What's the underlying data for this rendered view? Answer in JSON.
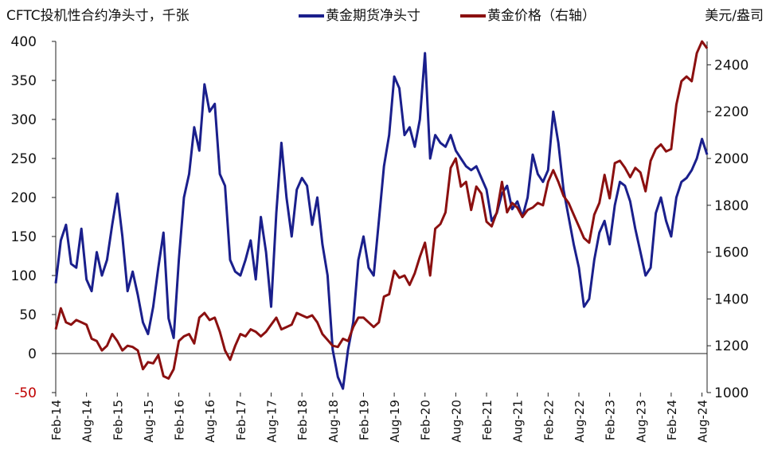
{
  "header": {
    "left_title": "CFTC投机性合约净头寸，千张",
    "right_unit": "美元/盎司"
  },
  "legend": {
    "net_long_label": "黄金期货净头寸",
    "price_label": "黄金价格（右轴）"
  },
  "colors": {
    "net_long": "#1a1f8c",
    "price": "#8b1010",
    "negative_tick": "#c00000",
    "axis": "#222222"
  },
  "chart_data": {
    "type": "line",
    "x_ticks": [
      "Feb-14",
      "Aug-14",
      "Feb-15",
      "Aug-15",
      "Feb-16",
      "Aug-16",
      "Feb-17",
      "Aug-17",
      "Feb-18",
      "Aug-18",
      "Feb-19",
      "Aug-19",
      "Feb-20",
      "Aug-20",
      "Feb-21",
      "Aug-21",
      "Feb-22",
      "Aug-22",
      "Feb-23",
      "Aug-23",
      "Feb-24",
      "Aug-24"
    ],
    "x_range": [
      "2014-02",
      "2024-09"
    ],
    "y_left": {
      "label": "CFTC投机性合约净头寸，千张",
      "min": -50,
      "max": 400,
      "ticks": [
        -50,
        0,
        50,
        100,
        150,
        200,
        250,
        300,
        350,
        400
      ]
    },
    "y_right": {
      "label": "美元/盎司",
      "min": 1000,
      "max": 2500,
      "ticks": [
        1000,
        1200,
        1400,
        1600,
        1800,
        2000,
        2200,
        2400
      ]
    },
    "gridlines": false,
    "legend_position": "top",
    "series": [
      {
        "name": "黄金期货净头寸",
        "axis": "left",
        "points": [
          [
            "2014-02",
            90
          ],
          [
            "2014-03",
            145
          ],
          [
            "2014-04",
            165
          ],
          [
            "2014-05",
            115
          ],
          [
            "2014-06",
            110
          ],
          [
            "2014-07",
            160
          ],
          [
            "2014-08",
            95
          ],
          [
            "2014-09",
            80
          ],
          [
            "2014-10",
            130
          ],
          [
            "2014-11",
            100
          ],
          [
            "2014-12",
            120
          ],
          [
            "2015-01",
            165
          ],
          [
            "2015-02",
            205
          ],
          [
            "2015-03",
            150
          ],
          [
            "2015-04",
            80
          ],
          [
            "2015-05",
            105
          ],
          [
            "2015-06",
            75
          ],
          [
            "2015-07",
            40
          ],
          [
            "2015-08",
            25
          ],
          [
            "2015-09",
            60
          ],
          [
            "2015-10",
            110
          ],
          [
            "2015-11",
            155
          ],
          [
            "2015-12",
            45
          ],
          [
            "2016-01",
            20
          ],
          [
            "2016-02",
            120
          ],
          [
            "2016-03",
            200
          ],
          [
            "2016-04",
            230
          ],
          [
            "2016-05",
            290
          ],
          [
            "2016-06",
            260
          ],
          [
            "2016-07",
            345
          ],
          [
            "2016-08",
            310
          ],
          [
            "2016-09",
            320
          ],
          [
            "2016-10",
            230
          ],
          [
            "2016-11",
            215
          ],
          [
            "2016-12",
            120
          ],
          [
            "2017-01",
            105
          ],
          [
            "2017-02",
            100
          ],
          [
            "2017-03",
            120
          ],
          [
            "2017-04",
            145
          ],
          [
            "2017-05",
            95
          ],
          [
            "2017-06",
            175
          ],
          [
            "2017-07",
            130
          ],
          [
            "2017-08",
            60
          ],
          [
            "2017-09",
            180
          ],
          [
            "2017-10",
            270
          ],
          [
            "2017-11",
            200
          ],
          [
            "2017-12",
            150
          ],
          [
            "2018-01",
            210
          ],
          [
            "2018-02",
            225
          ],
          [
            "2018-03",
            215
          ],
          [
            "2018-04",
            165
          ],
          [
            "2018-05",
            200
          ],
          [
            "2018-06",
            140
          ],
          [
            "2018-07",
            100
          ],
          [
            "2018-08",
            5
          ],
          [
            "2018-09",
            -30
          ],
          [
            "2018-10",
            -45
          ],
          [
            "2018-11",
            5
          ],
          [
            "2018-12",
            40
          ],
          [
            "2019-01",
            120
          ],
          [
            "2019-02",
            150
          ],
          [
            "2019-03",
            110
          ],
          [
            "2019-04",
            100
          ],
          [
            "2019-05",
            170
          ],
          [
            "2019-06",
            240
          ],
          [
            "2019-07",
            280
          ],
          [
            "2019-08",
            355
          ],
          [
            "2019-09",
            340
          ],
          [
            "2019-10",
            280
          ],
          [
            "2019-11",
            290
          ],
          [
            "2019-12",
            265
          ],
          [
            "2020-01",
            300
          ],
          [
            "2020-02",
            385
          ],
          [
            "2020-03",
            250
          ],
          [
            "2020-04",
            280
          ],
          [
            "2020-05",
            270
          ],
          [
            "2020-06",
            265
          ],
          [
            "2020-07",
            280
          ],
          [
            "2020-08",
            260
          ],
          [
            "2020-09",
            250
          ],
          [
            "2020-10",
            240
          ],
          [
            "2020-11",
            235
          ],
          [
            "2020-12",
            240
          ],
          [
            "2021-01",
            225
          ],
          [
            "2021-02",
            210
          ],
          [
            "2021-03",
            170
          ],
          [
            "2021-04",
            180
          ],
          [
            "2021-05",
            205
          ],
          [
            "2021-06",
            215
          ],
          [
            "2021-07",
            185
          ],
          [
            "2021-08",
            195
          ],
          [
            "2021-09",
            175
          ],
          [
            "2021-10",
            200
          ],
          [
            "2021-11",
            255
          ],
          [
            "2021-12",
            230
          ],
          [
            "2022-01",
            220
          ],
          [
            "2022-02",
            235
          ],
          [
            "2022-03",
            310
          ],
          [
            "2022-04",
            270
          ],
          [
            "2022-05",
            210
          ],
          [
            "2022-06",
            175
          ],
          [
            "2022-07",
            140
          ],
          [
            "2022-08",
            110
          ],
          [
            "2022-09",
            60
          ],
          [
            "2022-10",
            70
          ],
          [
            "2022-11",
            120
          ],
          [
            "2022-12",
            155
          ],
          [
            "2023-01",
            170
          ],
          [
            "2023-02",
            140
          ],
          [
            "2023-03",
            190
          ],
          [
            "2023-04",
            220
          ],
          [
            "2023-05",
            215
          ],
          [
            "2023-06",
            195
          ],
          [
            "2023-07",
            160
          ],
          [
            "2023-08",
            130
          ],
          [
            "2023-09",
            100
          ],
          [
            "2023-10",
            110
          ],
          [
            "2023-11",
            180
          ],
          [
            "2023-12",
            200
          ],
          [
            "2024-01",
            170
          ],
          [
            "2024-02",
            150
          ],
          [
            "2024-03",
            200
          ],
          [
            "2024-04",
            220
          ],
          [
            "2024-05",
            225
          ],
          [
            "2024-06",
            235
          ],
          [
            "2024-07",
            250
          ],
          [
            "2024-08",
            275
          ],
          [
            "2024-09",
            255
          ]
        ]
      },
      {
        "name": "黄金价格（右轴）",
        "axis": "right",
        "points": [
          [
            "2014-02",
            1270
          ],
          [
            "2014-03",
            1360
          ],
          [
            "2014-04",
            1300
          ],
          [
            "2014-05",
            1290
          ],
          [
            "2014-06",
            1310
          ],
          [
            "2014-07",
            1300
          ],
          [
            "2014-08",
            1290
          ],
          [
            "2014-09",
            1230
          ],
          [
            "2014-10",
            1220
          ],
          [
            "2014-11",
            1180
          ],
          [
            "2014-12",
            1200
          ],
          [
            "2015-01",
            1250
          ],
          [
            "2015-02",
            1220
          ],
          [
            "2015-03",
            1180
          ],
          [
            "2015-04",
            1200
          ],
          [
            "2015-05",
            1195
          ],
          [
            "2015-06",
            1180
          ],
          [
            "2015-07",
            1100
          ],
          [
            "2015-08",
            1130
          ],
          [
            "2015-09",
            1125
          ],
          [
            "2015-10",
            1160
          ],
          [
            "2015-11",
            1070
          ],
          [
            "2015-12",
            1060
          ],
          [
            "2016-01",
            1100
          ],
          [
            "2016-02",
            1220
          ],
          [
            "2016-03",
            1240
          ],
          [
            "2016-04",
            1250
          ],
          [
            "2016-05",
            1210
          ],
          [
            "2016-06",
            1320
          ],
          [
            "2016-07",
            1340
          ],
          [
            "2016-08",
            1310
          ],
          [
            "2016-09",
            1320
          ],
          [
            "2016-10",
            1260
          ],
          [
            "2016-11",
            1180
          ],
          [
            "2016-12",
            1140
          ],
          [
            "2017-01",
            1200
          ],
          [
            "2017-02",
            1250
          ],
          [
            "2017-03",
            1240
          ],
          [
            "2017-04",
            1270
          ],
          [
            "2017-05",
            1260
          ],
          [
            "2017-06",
            1240
          ],
          [
            "2017-07",
            1260
          ],
          [
            "2017-08",
            1290
          ],
          [
            "2017-09",
            1320
          ],
          [
            "2017-10",
            1270
          ],
          [
            "2017-11",
            1280
          ],
          [
            "2017-12",
            1290
          ],
          [
            "2018-01",
            1340
          ],
          [
            "2018-02",
            1330
          ],
          [
            "2018-03",
            1320
          ],
          [
            "2018-04",
            1330
          ],
          [
            "2018-05",
            1300
          ],
          [
            "2018-06",
            1250
          ],
          [
            "2018-07",
            1225
          ],
          [
            "2018-08",
            1200
          ],
          [
            "2018-09",
            1195
          ],
          [
            "2018-10",
            1230
          ],
          [
            "2018-11",
            1220
          ],
          [
            "2018-12",
            1280
          ],
          [
            "2019-01",
            1320
          ],
          [
            "2019-02",
            1320
          ],
          [
            "2019-03",
            1300
          ],
          [
            "2019-04",
            1280
          ],
          [
            "2019-05",
            1300
          ],
          [
            "2019-06",
            1410
          ],
          [
            "2019-07",
            1420
          ],
          [
            "2019-08",
            1520
          ],
          [
            "2019-09",
            1490
          ],
          [
            "2019-10",
            1500
          ],
          [
            "2019-11",
            1460
          ],
          [
            "2019-12",
            1510
          ],
          [
            "2020-01",
            1580
          ],
          [
            "2020-02",
            1640
          ],
          [
            "2020-03",
            1500
          ],
          [
            "2020-04",
            1700
          ],
          [
            "2020-05",
            1720
          ],
          [
            "2020-06",
            1770
          ],
          [
            "2020-07",
            1960
          ],
          [
            "2020-08",
            2000
          ],
          [
            "2020-09",
            1880
          ],
          [
            "2020-10",
            1900
          ],
          [
            "2020-11",
            1780
          ],
          [
            "2020-12",
            1880
          ],
          [
            "2021-01",
            1850
          ],
          [
            "2021-02",
            1730
          ],
          [
            "2021-03",
            1710
          ],
          [
            "2021-04",
            1770
          ],
          [
            "2021-05",
            1900
          ],
          [
            "2021-06",
            1770
          ],
          [
            "2021-07",
            1810
          ],
          [
            "2021-08",
            1790
          ],
          [
            "2021-09",
            1750
          ],
          [
            "2021-10",
            1780
          ],
          [
            "2021-11",
            1790
          ],
          [
            "2021-12",
            1810
          ],
          [
            "2022-01",
            1800
          ],
          [
            "2022-02",
            1900
          ],
          [
            "2022-03",
            1950
          ],
          [
            "2022-04",
            1900
          ],
          [
            "2022-05",
            1840
          ],
          [
            "2022-06",
            1810
          ],
          [
            "2022-07",
            1760
          ],
          [
            "2022-08",
            1710
          ],
          [
            "2022-09",
            1660
          ],
          [
            "2022-10",
            1640
          ],
          [
            "2022-11",
            1760
          ],
          [
            "2022-12",
            1810
          ],
          [
            "2023-01",
            1930
          ],
          [
            "2023-02",
            1830
          ],
          [
            "2023-03",
            1980
          ],
          [
            "2023-04",
            1990
          ],
          [
            "2023-05",
            1960
          ],
          [
            "2023-06",
            1920
          ],
          [
            "2023-07",
            1960
          ],
          [
            "2023-08",
            1940
          ],
          [
            "2023-09",
            1860
          ],
          [
            "2023-10",
            1990
          ],
          [
            "2023-11",
            2040
          ],
          [
            "2023-12",
            2060
          ],
          [
            "2024-01",
            2030
          ],
          [
            "2024-02",
            2040
          ],
          [
            "2024-03",
            2230
          ],
          [
            "2024-04",
            2330
          ],
          [
            "2024-05",
            2350
          ],
          [
            "2024-06",
            2330
          ],
          [
            "2024-07",
            2450
          ],
          [
            "2024-08",
            2500
          ],
          [
            "2024-09",
            2470
          ]
        ]
      }
    ]
  }
}
